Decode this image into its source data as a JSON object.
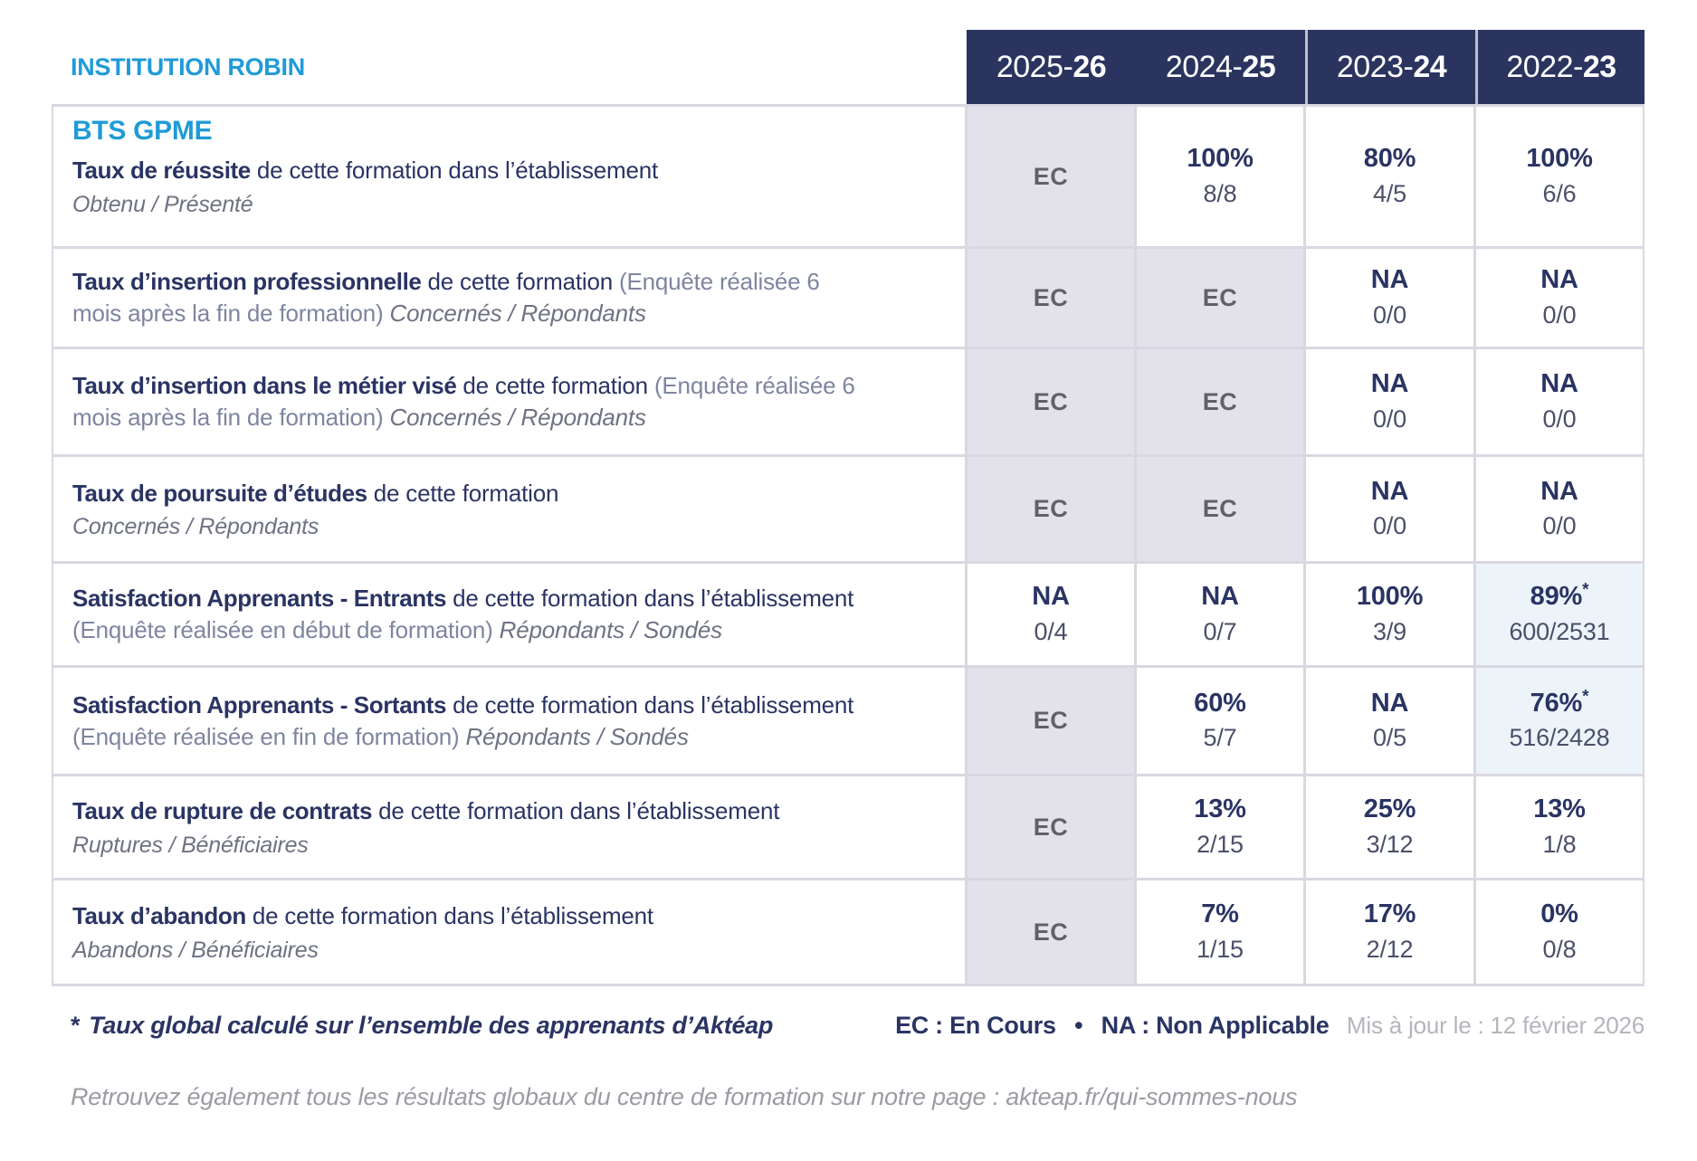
{
  "colors": {
    "accent_blue": "#1f9bd8",
    "navy": "#2a3463",
    "header_band": "#2b345e",
    "ec_cell_bg": "#e3e2eb",
    "highlight_cell_bg": "#ecf4fa",
    "border": "#d9d8e2",
    "muted_gray": "#b5b5bd"
  },
  "header": {
    "institution": "INSTITUTION ROBIN",
    "years": [
      {
        "prefix": "2025-",
        "suffix": "26"
      },
      {
        "prefix": "2024-",
        "suffix": "25"
      },
      {
        "prefix": "2023-",
        "suffix": "24"
      },
      {
        "prefix": "2022-",
        "suffix": "23"
      }
    ]
  },
  "table": {
    "program": "BTS GPME",
    "rows": [
      {
        "segments": [
          {
            "style": "bold",
            "text": "Taux de réussite"
          },
          {
            "style": "navy",
            "text": " de cette formation dans l’établissement"
          }
        ],
        "subtitle": "Obtenu / Présenté",
        "cells": [
          {
            "v": "EC"
          },
          {
            "v": "100%",
            "f": "8/8"
          },
          {
            "v": "80%",
            "f": "4/5"
          },
          {
            "v": "100%",
            "f": "6/6"
          }
        ]
      },
      {
        "segments": [
          {
            "style": "bold",
            "text": "Taux d’insertion professionnelle"
          },
          {
            "style": "navy",
            "text": " de cette formation "
          },
          {
            "style": "gray",
            "text": "(Enquête réalisée 6 mois après la fin de formation) "
          },
          {
            "style": "italic",
            "text": "Concernés / Répondants"
          }
        ],
        "subtitle": null,
        "cells": [
          {
            "v": "EC"
          },
          {
            "v": "EC"
          },
          {
            "v": "NA",
            "f": "0/0"
          },
          {
            "v": "NA",
            "f": "0/0"
          }
        ]
      },
      {
        "segments": [
          {
            "style": "bold",
            "text": "Taux d’insertion dans le métier visé"
          },
          {
            "style": "navy",
            "text": " de cette formation "
          },
          {
            "style": "gray",
            "text": "(Enquête réalisée 6 mois après la fin de formation) "
          },
          {
            "style": "italic",
            "text": "Concernés / Répondants"
          }
        ],
        "subtitle": null,
        "cells": [
          {
            "v": "EC"
          },
          {
            "v": "EC"
          },
          {
            "v": "NA",
            "f": "0/0"
          },
          {
            "v": "NA",
            "f": "0/0"
          }
        ]
      },
      {
        "segments": [
          {
            "style": "bold",
            "text": "Taux de poursuite d’études"
          },
          {
            "style": "navy",
            "text": " de cette formation"
          }
        ],
        "subtitle": "Concernés / Répondants",
        "cells": [
          {
            "v": "EC"
          },
          {
            "v": "EC"
          },
          {
            "v": "NA",
            "f": "0/0"
          },
          {
            "v": "NA",
            "f": "0/0"
          }
        ]
      },
      {
        "segments": [
          {
            "style": "bold",
            "text": "Satisfaction Apprenants - Entrants"
          },
          {
            "style": "navy",
            "text": " de cette formation dans l’établissement "
          },
          {
            "style": "gray",
            "text": "(Enquête réalisée en début de formation) "
          },
          {
            "style": "italic",
            "text": "Répondants / Sondés"
          }
        ],
        "subtitle": null,
        "cells": [
          {
            "v": "NA",
            "f": "0/4"
          },
          {
            "v": "NA",
            "f": "0/7"
          },
          {
            "v": "100%",
            "f": "3/9"
          },
          {
            "v": "89%",
            "star": true,
            "f": "600/2531"
          }
        ]
      },
      {
        "segments": [
          {
            "style": "bold",
            "text": "Satisfaction Apprenants - Sortants"
          },
          {
            "style": "navy",
            "text": " de cette formation dans l’établissement "
          },
          {
            "style": "gray",
            "text": "(Enquête réalisée en fin de formation) "
          },
          {
            "style": "italic",
            "text": "Répondants / Sondés"
          }
        ],
        "subtitle": null,
        "cells": [
          {
            "v": "EC"
          },
          {
            "v": "60%",
            "f": "5/7"
          },
          {
            "v": "NA",
            "f": "0/5"
          },
          {
            "v": "76%",
            "star": true,
            "f": "516/2428"
          }
        ]
      },
      {
        "segments": [
          {
            "style": "bold",
            "text": "Taux de rupture de contrats"
          },
          {
            "style": "navy",
            "text": " de cette formation dans l’établissement"
          }
        ],
        "subtitle": "Ruptures / Bénéficiaires",
        "cells": [
          {
            "v": "EC"
          },
          {
            "v": "13%",
            "f": "2/15"
          },
          {
            "v": "25%",
            "f": "3/12"
          },
          {
            "v": "13%",
            "f": "1/8"
          }
        ]
      },
      {
        "segments": [
          {
            "style": "bold",
            "text": "Taux d’abandon"
          },
          {
            "style": "navy",
            "text": " de cette formation dans l’établissement"
          }
        ],
        "subtitle": "Abandons / Bénéficiaires",
        "cells": [
          {
            "v": "EC"
          },
          {
            "v": "7%",
            "f": "1/15"
          },
          {
            "v": "17%",
            "f": "2/12"
          },
          {
            "v": "0%",
            "f": "0/8"
          }
        ]
      }
    ]
  },
  "footer": {
    "star_mark": "*",
    "footnote": "Taux global calculé sur l’ensemble des apprenants d’Aktéap",
    "legend": "EC : En Cours  •  NA : Non Applicable",
    "updated": "Mis à jour le : 12 février 2026",
    "bottom_note": "Retrouvez également tous les résultats globaux du centre de formation sur notre page : akteap.fr/qui-sommes-nous"
  }
}
